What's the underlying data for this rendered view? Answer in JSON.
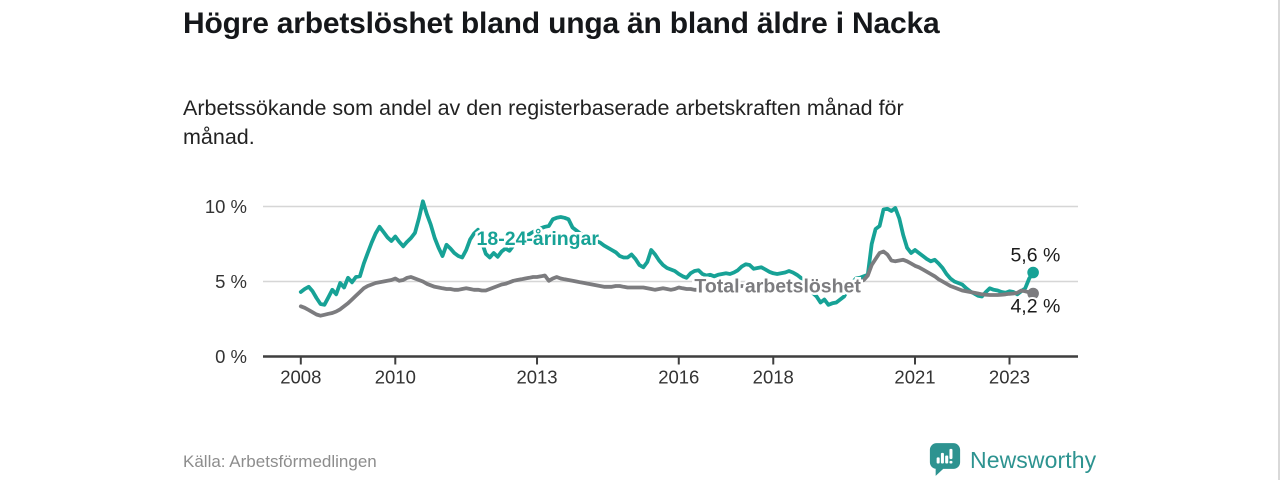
{
  "header": {
    "title": "Högre arbetslöshet bland unga än bland äldre i Nacka",
    "subtitle": "Arbetssökande som andel av den registerbaserade arbetskraften månad för månad.",
    "subtitle_lines": [
      "Arbetssökande som andel av den registerbaserade arbetskraften månad för",
      "månad."
    ]
  },
  "footer": {
    "source": "Källa: Arbetsförmedlingen",
    "brand_name": "Newsworthy",
    "brand_color": "#2D9390"
  },
  "chart_data": {
    "type": "line",
    "title": "Högre arbetslöshet bland unga än bland äldre i Nacka",
    "xlabel": "",
    "ylabel": "",
    "x_unit": "year (monthly samples)",
    "y_unit": "percent of registered labour force",
    "xlim": [
      2007.2,
      2024.45
    ],
    "ylim": [
      0,
      10.5
    ],
    "grid": "horizontal",
    "legend_position": "inline-labels",
    "style": {
      "grid_color": "#d6d6d6",
      "axis_color": "#3f3f3f",
      "tick_text_color": "#333333",
      "end_label_color": "#1b1b1b"
    },
    "yticks": [
      {
        "v": 0,
        "label": "0 %"
      },
      {
        "v": 5,
        "label": "5 %"
      },
      {
        "v": 10,
        "label": "10 %"
      }
    ],
    "xticks": [
      {
        "v": 2008,
        "label": "2008"
      },
      {
        "v": 2010,
        "label": "2010"
      },
      {
        "v": 2013,
        "label": "2013"
      },
      {
        "v": 2016,
        "label": "2016"
      },
      {
        "v": 2018,
        "label": "2018"
      },
      {
        "v": 2021,
        "label": "2021"
      },
      {
        "v": 2023,
        "label": "2023"
      }
    ],
    "series": [
      {
        "name": "18-24-åringar",
        "color": "#17A296",
        "line_width": 3.8,
        "start_year": 2008,
        "step_months": 1,
        "label": {
          "x": 2011.72,
          "y": 7.85,
          "anchor": "start"
        },
        "end_label": {
          "text": "5,6 %",
          "x": 2023.02,
          "y": 6.72
        },
        "end_value": 5.6,
        "values": [
          4.3,
          4.5,
          4.65,
          4.35,
          3.9,
          3.5,
          3.45,
          3.95,
          4.45,
          4.15,
          4.9,
          4.6,
          5.25,
          4.95,
          5.3,
          5.35,
          6.2,
          6.9,
          7.6,
          8.2,
          8.65,
          8.3,
          7.95,
          7.7,
          8.0,
          7.65,
          7.35,
          7.65,
          7.9,
          8.25,
          9.2,
          10.35,
          9.5,
          8.8,
          7.9,
          7.25,
          6.7,
          7.45,
          7.2,
          6.9,
          6.7,
          6.6,
          7.1,
          7.8,
          8.2,
          8.45,
          7.6,
          6.85,
          6.6,
          6.9,
          6.65,
          7.0,
          7.2,
          7.05,
          7.4,
          7.6,
          7.8,
          8.0,
          8.15,
          8.3,
          8.45,
          8.55,
          8.65,
          8.7,
          9.15,
          9.25,
          9.3,
          9.25,
          9.15,
          8.6,
          8.4,
          8.2,
          8.0,
          7.9,
          7.75,
          7.7,
          7.6,
          7.4,
          7.25,
          7.1,
          6.95,
          6.7,
          6.6,
          6.6,
          6.8,
          6.5,
          6.1,
          5.95,
          6.3,
          7.1,
          6.8,
          6.4,
          6.1,
          5.9,
          5.8,
          5.7,
          5.5,
          5.35,
          5.25,
          5.55,
          5.7,
          5.75,
          5.5,
          5.4,
          5.45,
          5.35,
          5.45,
          5.5,
          5.55,
          5.5,
          5.6,
          5.75,
          6.0,
          6.15,
          6.1,
          5.85,
          5.9,
          5.95,
          5.8,
          5.65,
          5.55,
          5.5,
          5.55,
          5.6,
          5.7,
          5.6,
          5.45,
          5.25,
          4.9,
          4.55,
          4.25,
          4.0,
          3.6,
          3.8,
          3.45,
          3.55,
          3.6,
          3.8,
          4.0,
          4.5,
          4.9,
          5.2,
          5.25,
          5.35,
          5.45,
          7.5,
          8.5,
          8.7,
          9.8,
          9.85,
          9.7,
          9.9,
          9.2,
          8.1,
          7.25,
          6.9,
          7.1,
          6.9,
          6.7,
          6.5,
          6.35,
          6.45,
          6.2,
          5.9,
          5.5,
          5.2,
          5.0,
          4.9,
          4.8,
          4.55,
          4.35,
          4.2,
          4.05,
          4.0,
          4.3,
          4.55,
          4.45,
          4.4,
          4.3,
          4.25,
          4.35,
          4.3,
          4.15,
          4.35,
          4.55,
          5.2,
          5.6
        ]
      },
      {
        "name": "Total arbetslöshet",
        "color": "#7C7C7F",
        "line_width": 3.8,
        "start_year": 2008,
        "step_months": 1,
        "label": {
          "x": 2016.33,
          "y": 4.68,
          "anchor": "start"
        },
        "end_label": {
          "text": "4,2 %",
          "x": 2023.02,
          "y": 3.32
        },
        "end_value": 4.2,
        "values": [
          3.35,
          3.25,
          3.1,
          2.95,
          2.8,
          2.72,
          2.78,
          2.85,
          2.9,
          3.0,
          3.15,
          3.35,
          3.55,
          3.8,
          4.05,
          4.3,
          4.55,
          4.7,
          4.8,
          4.9,
          4.95,
          5.0,
          5.05,
          5.1,
          5.2,
          5.05,
          5.1,
          5.25,
          5.3,
          5.2,
          5.1,
          5.0,
          4.85,
          4.75,
          4.65,
          4.6,
          4.55,
          4.5,
          4.5,
          4.45,
          4.45,
          4.5,
          4.55,
          4.5,
          4.45,
          4.45,
          4.4,
          4.4,
          4.5,
          4.6,
          4.7,
          4.8,
          4.85,
          4.95,
          5.05,
          5.1,
          5.15,
          5.2,
          5.25,
          5.3,
          5.3,
          5.35,
          5.4,
          5.05,
          5.2,
          5.3,
          5.2,
          5.15,
          5.1,
          5.05,
          5.0,
          4.95,
          4.9,
          4.85,
          4.8,
          4.75,
          4.7,
          4.65,
          4.65,
          4.65,
          4.7,
          4.7,
          4.65,
          4.6,
          4.6,
          4.6,
          4.6,
          4.6,
          4.55,
          4.5,
          4.45,
          4.5,
          4.55,
          4.5,
          4.45,
          4.5,
          4.6,
          4.55,
          4.5,
          4.5,
          4.45,
          4.45,
          4.5,
          4.5,
          4.55,
          4.55,
          4.6,
          4.6,
          4.6,
          4.65,
          4.65,
          4.65,
          4.7,
          4.7,
          4.7,
          4.7,
          4.7,
          4.7,
          4.65,
          4.65,
          4.6,
          4.6,
          4.6,
          4.6,
          4.6,
          4.6,
          4.55,
          4.55,
          4.5,
          4.5,
          4.5,
          4.5,
          4.5,
          4.5,
          4.55,
          4.55,
          4.6,
          4.65,
          4.7,
          4.75,
          4.85,
          4.9,
          5.0,
          5.1,
          5.4,
          6.1,
          6.5,
          6.9,
          7.0,
          6.8,
          6.4,
          6.35,
          6.4,
          6.45,
          6.35,
          6.2,
          6.05,
          5.95,
          5.8,
          5.65,
          5.5,
          5.35,
          5.15,
          5.0,
          4.85,
          4.7,
          4.6,
          4.5,
          4.4,
          4.35,
          4.3,
          4.25,
          4.2,
          4.15,
          4.12,
          4.1,
          4.1,
          4.1,
          4.12,
          4.15,
          4.18,
          4.2,
          4.25,
          4.4,
          4.35,
          4.28,
          4.2
        ]
      }
    ]
  }
}
